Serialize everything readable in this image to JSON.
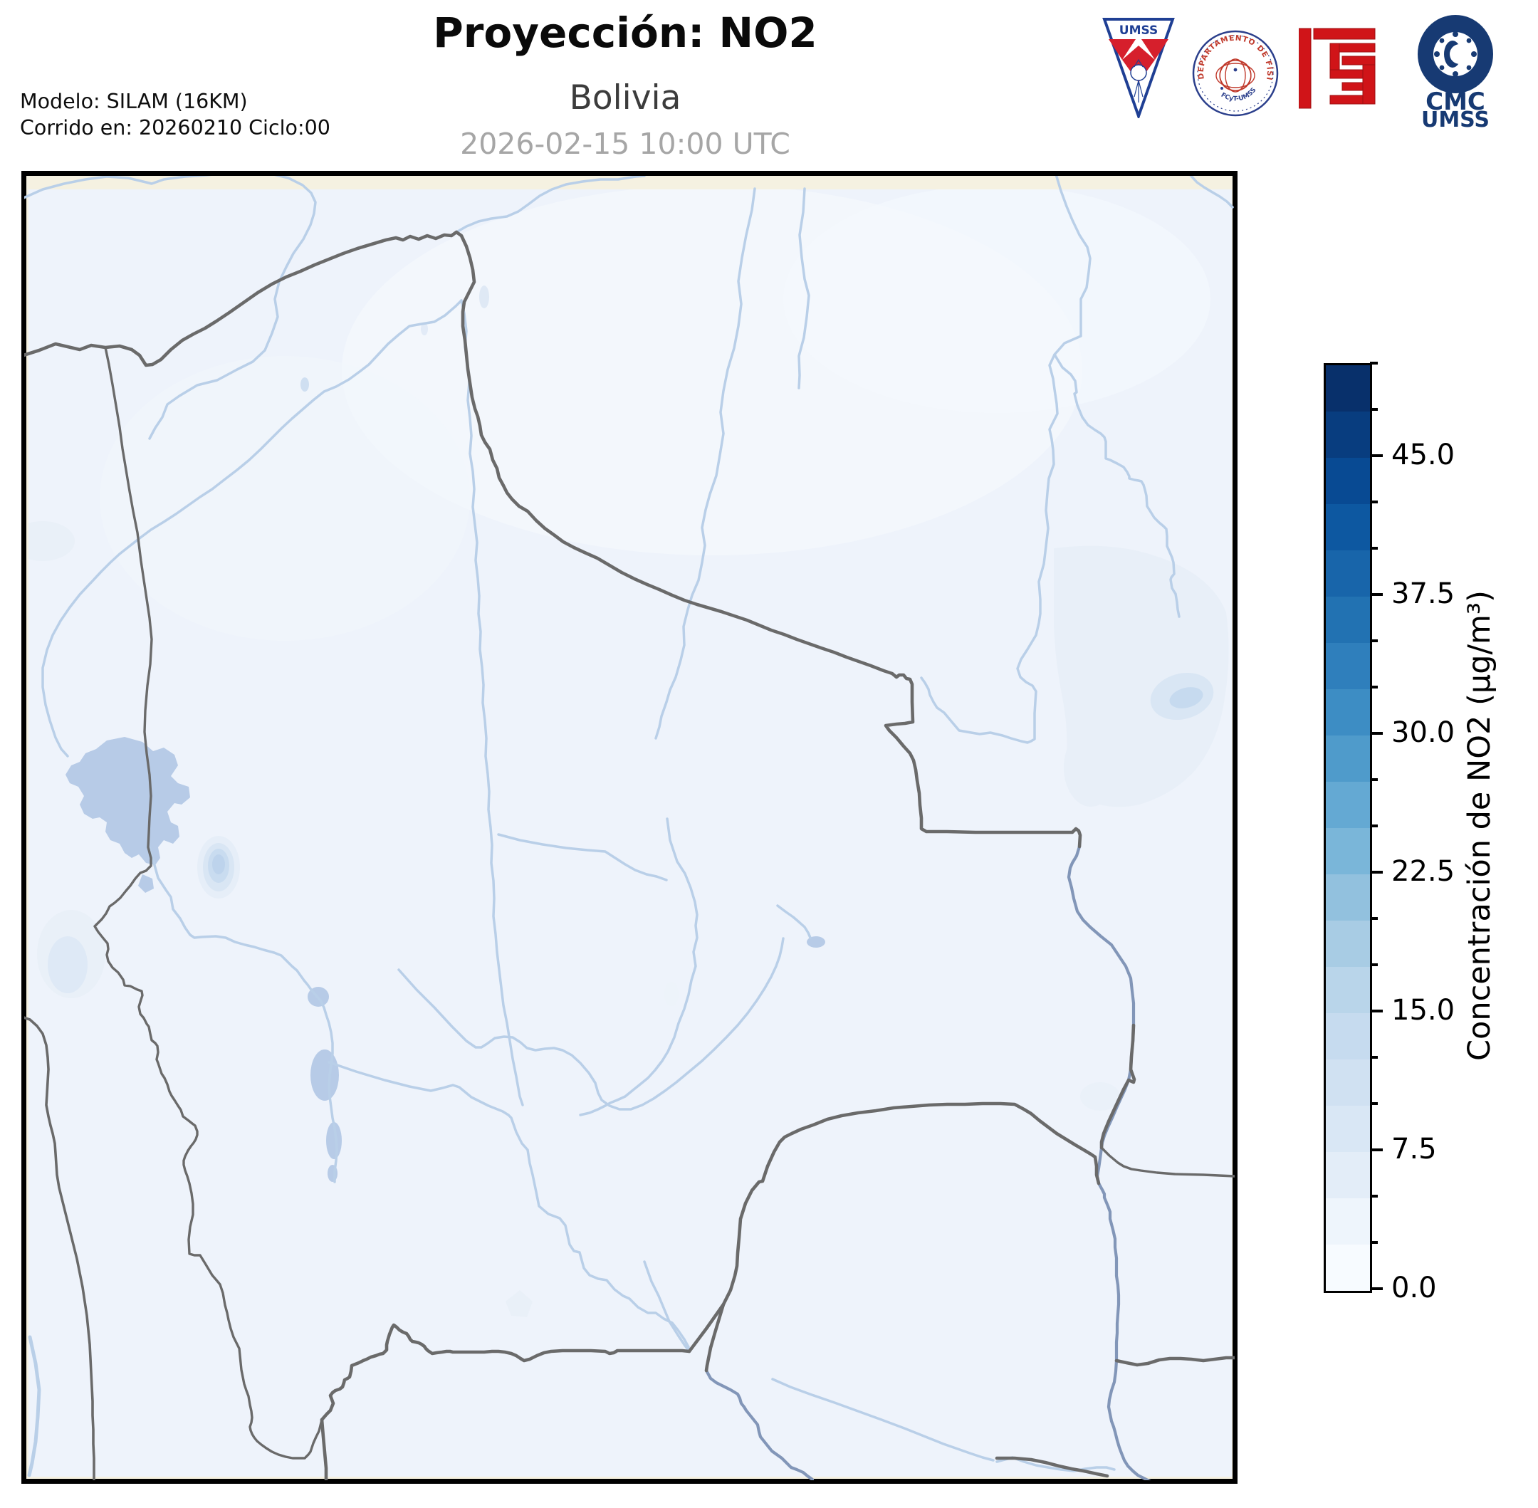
{
  "header": {
    "title": "Proyección: NO2",
    "subtitle": "Bolivia",
    "datetime": "2026-02-15 10:00 UTC",
    "model_line": "Modelo: SILAM (16KM)",
    "run_line": "Corrido en: 20260210 Ciclo:00"
  },
  "logos": {
    "umss_pennant_text": "UMSS",
    "physics_seal_ring_text": "DEPARTAMENTO DE FÍSICA",
    "physics_seal_sub_text": "FCyT-UMSS",
    "cmc_line1": "CMC",
    "cmc_line2": "UMSS"
  },
  "colorbar": {
    "label": "Concentración de NO2 (µg/m³)",
    "min": 0,
    "max": 50,
    "level_step": 2.5,
    "ticks": [
      {
        "label": "45.0",
        "value": 45.0
      },
      {
        "label": "37.5",
        "value": 37.5
      },
      {
        "label": "30.0",
        "value": 30.0
      },
      {
        "label": "22.5",
        "value": 22.5
      },
      {
        "label": "15.0",
        "value": 15.0
      },
      {
        "label": "7.5",
        "value": 7.5
      },
      {
        "label": "0.0",
        "value": 0.0
      }
    ],
    "segment_colors_bottom_to_top": [
      "#f7fbff",
      "#eef5fc",
      "#e3edf8",
      "#d9e7f5",
      "#d0e1f2",
      "#c6dbef",
      "#b9d5ea",
      "#a8cce4",
      "#92c1de",
      "#7ab6d9",
      "#64a9d3",
      "#4f9bcb",
      "#3d8dc4",
      "#2f7fbc",
      "#2272b2",
      "#1865aa",
      "#0d58a1",
      "#084a93",
      "#083d7f",
      "#08306b"
    ]
  },
  "map": {
    "frame_color": "#000000",
    "margin_bg": "#f5f1e1",
    "domain_bg": "#eef3fb",
    "border_line_color": "#6a6a6a",
    "river_color": "#b9cfe8",
    "major_river_color": "#8296b8",
    "lake_color": "#b7cbe7"
  }
}
